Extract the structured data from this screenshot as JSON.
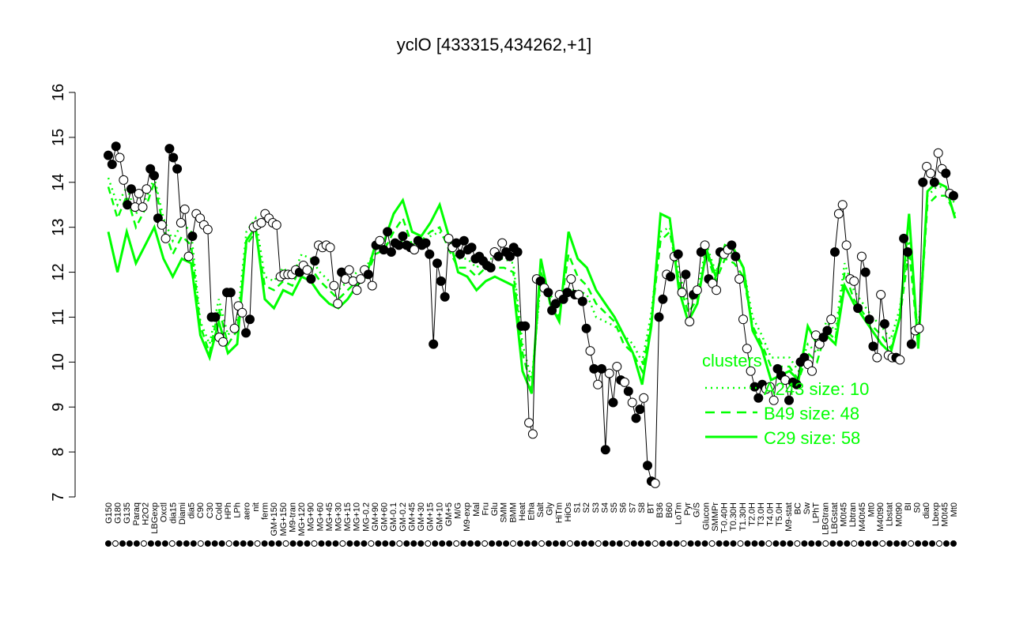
{
  "chart_data": {
    "type": "line",
    "title": "yclO [433315,434262,+1]",
    "xlabel": "",
    "ylabel": "",
    "ylim": [
      7,
      16
    ],
    "yticks": [
      7,
      8,
      9,
      10,
      11,
      12,
      13,
      14,
      15,
      16
    ],
    "xtick_labels": [
      "G150",
      "G180",
      "G135",
      "Paraq",
      "H2O2",
      "LBGexp",
      "Oxctl",
      "dia15",
      "Diami",
      "dia5",
      "C90",
      "C30",
      "Cold",
      "HPh",
      "LPh",
      "aero",
      "nit",
      "ferm",
      "GM+150",
      "MG+150",
      "M9-tran",
      "MG+120",
      "MG+90",
      "MG+60",
      "MG+45",
      "MG+30",
      "MG+15",
      "MG+10",
      "MG-0.2",
      "GM+90",
      "GM+60",
      "GM-0.1",
      "GM-0.2",
      "GM+45",
      "GM+30",
      "GM+15",
      "GM+10",
      "GM+5",
      "M/G",
      "M9-exp",
      "Mal",
      "Fru",
      "Glu",
      "SMM",
      "BMM",
      "Heat",
      "Etha",
      "Salt",
      "Gly",
      "HiTm",
      "HiOs",
      "S1",
      "S2",
      "S3",
      "S4",
      "S5",
      "S6",
      "S7",
      "S8",
      "BT",
      "B36",
      "B60",
      "LoTm",
      "Pyr",
      "G/S",
      "Glucon",
      "SMMPr",
      "T-0.40H",
      "T0.30H",
      "T1.30H",
      "T2.0H",
      "T3.0H",
      "T4.0H",
      "T5.0H",
      "M9-stat",
      "BC",
      "Sw",
      "LPhT",
      "LBGtran",
      "LBGstat",
      "M0t45",
      "Lbtran",
      "M40t45",
      "Mt0",
      "M40t90",
      "Lbstat",
      "M0t90",
      "BI",
      "S0",
      "dia0",
      "Lbexp",
      "M0t45",
      "Mt0"
    ],
    "points_y": [
      14.6,
      14.4,
      14.8,
      14.55,
      14.05,
      13.5,
      13.85,
      13.45,
      13.75,
      13.45,
      13.85,
      14.3,
      14.15,
      13.2,
      13.05,
      12.75,
      14.75,
      14.55,
      14.3,
      13.1,
      13.4,
      12.35,
      12.8,
      13.3,
      13.2,
      13.05,
      12.95,
      11.0,
      11.0,
      10.55,
      10.45,
      11.55,
      11.55,
      10.75,
      11.25,
      11.1,
      10.65,
      10.95,
      13.0,
      13.05,
      13.1,
      13.3,
      13.2,
      13.1,
      13.05,
      11.9,
      11.95,
      11.95,
      11.95,
      12.05,
      12.0,
      12.15,
      12.05,
      11.85,
      12.25,
      12.6,
      12.55,
      12.6,
      12.55,
      11.7,
      11.3,
      12.0,
      11.85,
      12.05,
      11.8,
      11.6,
      11.85,
      12.05,
      11.95,
      11.7,
      12.6,
      12.7,
      12.5,
      12.9,
      12.45,
      12.65,
      12.6,
      12.8,
      12.6,
      12.55,
      12.5,
      12.7,
      12.6,
      12.65,
      12.4,
      10.4,
      12.2,
      11.8,
      11.45,
      12.75,
      12.55,
      12.65,
      12.4,
      12.7,
      12.5,
      12.55,
      12.3,
      12.35,
      12.25,
      12.15,
      12.1,
      12.45,
      12.35,
      12.65,
      12.45,
      12.35,
      12.55,
      12.45,
      10.8,
      10.8,
      8.65,
      8.4,
      11.85,
      11.8,
      11.65,
      11.55,
      11.15,
      11.3,
      11.5,
      11.4,
      11.55,
      11.85,
      11.5,
      11.5,
      11.35,
      10.75,
      10.25,
      9.85,
      9.5,
      9.85,
      8.05,
      9.75,
      9.1,
      9.9,
      9.6,
      9.55,
      9.35,
      9.1,
      8.75,
      8.95,
      9.2,
      7.7,
      7.35,
      7.3,
      11.0,
      11.4,
      11.95,
      11.9,
      12.35,
      12.4,
      11.55,
      11.95,
      10.9,
      11.5,
      11.6,
      12.45,
      12.6,
      11.85,
      11.75,
      11.6,
      12.45,
      12.4,
      12.5,
      12.6,
      12.35,
      11.85,
      10.95,
      10.3,
      9.8,
      9.45,
      9.2,
      9.5,
      9.4,
      9.45,
      9.15,
      9.85,
      9.7,
      9.6,
      9.15,
      9.55,
      9.5,
      10.0,
      10.1,
      9.95,
      9.8,
      10.6,
      10.4,
      10.55,
      10.7,
      10.95,
      12.45,
      13.3,
      13.5,
      12.6,
      11.85,
      11.8,
      11.2,
      12.35,
      12.0,
      10.95,
      10.35,
      10.1,
      11.5,
      10.85,
      10.15,
      10.1,
      10.1,
      10.05,
      12.75,
      12.45,
      10.4,
      10.7,
      10.75,
      14.0,
      14.35,
      14.2,
      14.0,
      14.65,
      14.3,
      14.2,
      13.75,
      13.7
    ],
    "filled_points": [
      0,
      1,
      2,
      5,
      6,
      11,
      12,
      13,
      16,
      17,
      18,
      22,
      27,
      28,
      31,
      32,
      36,
      37,
      50,
      53,
      54,
      61,
      68,
      70,
      72,
      73,
      74,
      75,
      76,
      77,
      78,
      79,
      81,
      82,
      83,
      84,
      85,
      86,
      87,
      88,
      91,
      92,
      93,
      94,
      95,
      96,
      97,
      98,
      99,
      100,
      102,
      104,
      105,
      106,
      107,
      108,
      109,
      113,
      115,
      116,
      117,
      119,
      120,
      122,
      124,
      125,
      127,
      129,
      130,
      132,
      134,
      136,
      138,
      139,
      141,
      142,
      144,
      145,
      147,
      149,
      151,
      153,
      155,
      157,
      160,
      163,
      164,
      169,
      170,
      171,
      175,
      176,
      178,
      179,
      180,
      181,
      182,
      187,
      188,
      190,
      196,
      198,
      199,
      200,
      203,
      206,
      208,
      209,
      210,
      213,
      216,
      219,
      221,
      224,
      226,
      228
    ],
    "series": [
      {
        "name": "A243 size: 10",
        "style": "dotted",
        "values": [
          14.1,
          13.5,
          13.9,
          13.3,
          13.6,
          14.1,
          13.2,
          12.7,
          13.1,
          12.9,
          10.9,
          10.4,
          11.4,
          10.6,
          10.9,
          12.9,
          13.2,
          11.9,
          11.8,
          12.1,
          11.9,
          12.4,
          12.3,
          12.0,
          11.8,
          11.6,
          11.8,
          12.0,
          12.1,
          12.5,
          12.6,
          12.7,
          12.7,
          12.6,
          12.6,
          12.8,
          12.9,
          12.6,
          12.3,
          12.3,
          12.1,
          12.3,
          12.3,
          12.3,
          12.2,
          10.4,
          9.6,
          11.8,
          11.5,
          11.2,
          11.6,
          11.6,
          11.5,
          11.0,
          10.9,
          10.8,
          10.6,
          10.4,
          10.0,
          11.1,
          12.9,
          13.0,
          12.0,
          11.3,
          11.6,
          12.6,
          12.0,
          12.5,
          12.4,
          12.1,
          11.0,
          10.6,
          10.1,
          10.1,
          10.1,
          9.8,
          10.4,
          10.2,
          10.9,
          10.7,
          12.2,
          11.6,
          11.3,
          11.0,
          10.8,
          10.5,
          11.2,
          12.7,
          10.6,
          13.7,
          13.9,
          13.9,
          13.5
        ]
      },
      {
        "name": "B49 size: 48",
        "style": "dashed",
        "values": [
          13.9,
          13.2,
          13.7,
          13.0,
          13.4,
          14.0,
          13.0,
          12.4,
          12.8,
          12.6,
          10.8,
          10.2,
          11.2,
          10.4,
          10.7,
          12.6,
          12.9,
          11.7,
          11.6,
          11.8,
          11.7,
          12.2,
          12.1,
          11.8,
          11.6,
          11.4,
          11.6,
          11.8,
          11.9,
          12.4,
          12.5,
          12.9,
          13.2,
          12.6,
          12.7,
          12.9,
          13.0,
          12.5,
          12.1,
          12.1,
          11.9,
          12.1,
          12.1,
          12.1,
          12.0,
          10.2,
          9.4,
          12.0,
          11.4,
          11.0,
          12.4,
          11.9,
          11.7,
          11.3,
          11.1,
          10.9,
          10.4,
          10.2,
          9.8,
          10.9,
          12.7,
          12.9,
          11.8,
          11.1,
          11.4,
          12.4,
          11.8,
          12.3,
          12.2,
          11.9,
          10.8,
          10.4,
          9.9,
          9.9,
          9.9,
          9.6,
          10.2,
          10.0,
          10.7,
          10.5,
          12.0,
          11.4,
          11.1,
          10.8,
          10.6,
          10.3,
          11.0,
          12.5,
          10.4,
          13.5,
          13.7,
          13.7,
          13.3
        ]
      },
      {
        "name": "C29 size: 58",
        "style": "solid",
        "values": [
          12.9,
          12.0,
          12.9,
          12.2,
          12.6,
          13.0,
          12.3,
          11.9,
          12.3,
          12.2,
          10.6,
          10.1,
          10.9,
          10.2,
          10.4,
          12.7,
          13.0,
          11.4,
          11.2,
          11.6,
          11.5,
          11.9,
          11.8,
          11.5,
          11.3,
          11.2,
          11.4,
          11.7,
          11.9,
          12.6,
          12.7,
          13.3,
          13.6,
          12.9,
          12.8,
          13.1,
          13.5,
          12.8,
          12.0,
          11.9,
          11.6,
          11.8,
          11.9,
          11.8,
          11.7,
          9.8,
          9.3,
          12.3,
          11.3,
          10.9,
          12.9,
          12.3,
          12.1,
          11.6,
          11.3,
          11.0,
          10.6,
          10.2,
          9.5,
          10.8,
          13.3,
          13.2,
          11.6,
          10.9,
          11.3,
          12.5,
          11.9,
          12.6,
          12.5,
          12.1,
          10.7,
          10.3,
          9.6,
          9.7,
          9.8,
          9.6,
          10.8,
          10.4,
          10.6,
          10.4,
          11.7,
          11.3,
          11.0,
          10.7,
          10.4,
          10.2,
          11.0,
          13.3,
          10.3,
          13.8,
          14.0,
          13.9,
          13.2
        ]
      }
    ],
    "legend": {
      "title": "clusters",
      "placement": "right",
      "color": "#00ff00"
    },
    "colors": {
      "points": "#000000",
      "lines": "#00ff00",
      "axis": "#000000",
      "background": "#ffffff"
    }
  }
}
